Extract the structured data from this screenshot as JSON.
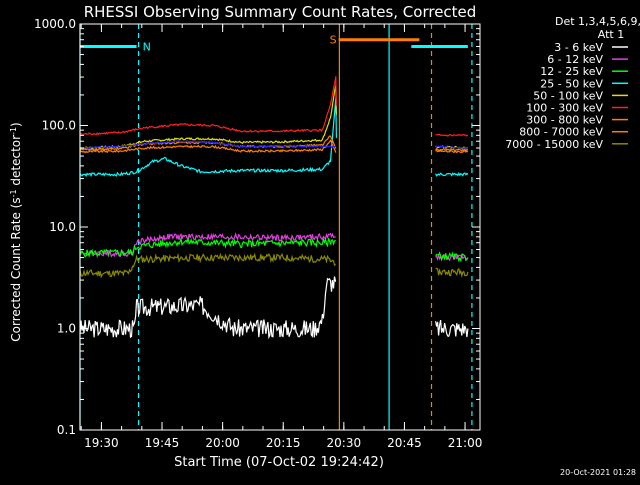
{
  "chart_data": {
    "type": "line",
    "title": "RHESSI Observing Summary Count Rates, Corrected",
    "xlabel": "Start Time (07-Oct-02 19:24:42)",
    "ylabel": "Corrected Count Rate (s",
    "ylabel_sup1": "-1",
    "ylabel_mid": " detector",
    "ylabel_sup2": "-1",
    "ylabel_end": ")",
    "y_scale": "log",
    "ylim": [
      0.1,
      1000
    ],
    "x_unit": "minutes after 19:24:42",
    "xlim": [
      0,
      99
    ],
    "x_tick_labels": [
      "19:30",
      "19:45",
      "20:00",
      "20:15",
      "20:30",
      "20:45",
      "21:00"
    ],
    "x_tick_minutes": [
      5.3,
      20.3,
      35.3,
      50.3,
      65.3,
      80.3,
      95.3
    ],
    "y_tick_labels": [
      "0.1",
      "1.0",
      "10.0",
      "100.0",
      "1000.0"
    ],
    "y_tick_values": [
      0.1,
      1,
      10,
      100,
      1000
    ],
    "legend": {
      "header": [
        "Det 1,3,4,5,6,9,",
        "Att 1"
      ],
      "placement": "top-right outside"
    },
    "series": [
      {
        "name": "3 - 6 keV",
        "color": "#ffffff",
        "values": [
          [
            0,
            1.0
          ],
          [
            13.5,
            1.0
          ],
          [
            14,
            1.6
          ],
          [
            30,
            1.7
          ],
          [
            38,
            1.0
          ],
          [
            58,
            1.0
          ],
          [
            60,
            1.2
          ],
          [
            61,
            2.8
          ],
          [
            63.5,
            2.8
          ],
          [
            88,
            1.0
          ],
          [
            96,
            1.0
          ]
        ]
      },
      {
        "name": "6 - 12 keV",
        "color": "#e040e0",
        "values": [
          [
            0,
            5.5
          ],
          [
            13,
            5.5
          ],
          [
            14,
            7.2
          ],
          [
            22,
            8.0
          ],
          [
            35,
            8.0
          ],
          [
            50,
            7.8
          ],
          [
            61,
            8.0
          ],
          [
            63.5,
            8.5
          ],
          [
            88,
            5.0
          ],
          [
            96,
            5.0
          ]
        ]
      },
      {
        "name": "12 - 25 keV",
        "color": "#00ff00",
        "values": [
          [
            0,
            5.5
          ],
          [
            13,
            5.6
          ],
          [
            14,
            6.4
          ],
          [
            25,
            7.2
          ],
          [
            40,
            6.8
          ],
          [
            55,
            7.0
          ],
          [
            61,
            7.0
          ],
          [
            63.5,
            7.5
          ],
          [
            88,
            5.2
          ],
          [
            96,
            5.0
          ]
        ]
      },
      {
        "name": "25 - 50 keV",
        "color": "#00ffff",
        "values": [
          [
            0,
            33
          ],
          [
            10,
            33
          ],
          [
            14,
            35
          ],
          [
            18,
            44
          ],
          [
            21,
            47
          ],
          [
            25,
            40
          ],
          [
            30,
            35
          ],
          [
            40,
            36
          ],
          [
            50,
            36
          ],
          [
            60,
            37
          ],
          [
            62,
            45
          ],
          [
            63.3,
            180
          ],
          [
            63.6,
            33
          ],
          [
            88,
            33
          ],
          [
            96,
            33
          ]
        ]
      },
      {
        "name": "50 - 100 keV",
        "color": "#e0e000",
        "values": [
          [
            0,
            60
          ],
          [
            10,
            62
          ],
          [
            16,
            70
          ],
          [
            25,
            74
          ],
          [
            33,
            74
          ],
          [
            40,
            68
          ],
          [
            50,
            69
          ],
          [
            60,
            72
          ],
          [
            62,
            120
          ],
          [
            63.3,
            250
          ],
          [
            63.6,
            62
          ],
          [
            88,
            62
          ],
          [
            96,
            60
          ]
        ]
      },
      {
        "name": "100 - 300 keV",
        "color": "#ff2020",
        "values": [
          [
            0,
            82
          ],
          [
            10,
            85
          ],
          [
            16,
            95
          ],
          [
            25,
            102
          ],
          [
            33,
            100
          ],
          [
            40,
            88
          ],
          [
            50,
            88
          ],
          [
            60,
            90
          ],
          [
            62,
            160
          ],
          [
            63.3,
            300
          ],
          [
            63.6,
            80
          ],
          [
            88,
            80
          ],
          [
            96,
            80
          ]
        ]
      },
      {
        "name": "300 - 800 keV",
        "color": "#ff8000",
        "values": [
          [
            0,
            55
          ],
          [
            10,
            56
          ],
          [
            16,
            60
          ],
          [
            25,
            62
          ],
          [
            33,
            62
          ],
          [
            40,
            56
          ],
          [
            50,
            56
          ],
          [
            60,
            58
          ],
          [
            62,
            70
          ],
          [
            63.6,
            52
          ],
          [
            88,
            56
          ],
          [
            96,
            55
          ]
        ]
      },
      {
        "name": "800 - 7000 keV",
        "color": "#ff8000",
        "values": [
          [
            0,
            58
          ],
          [
            10,
            59
          ],
          [
            16,
            66
          ],
          [
            25,
            68
          ],
          [
            33,
            68
          ],
          [
            40,
            62
          ],
          [
            50,
            62
          ],
          [
            60,
            64
          ],
          [
            62,
            80
          ],
          [
            63.6,
            55
          ],
          [
            88,
            58
          ],
          [
            96,
            57
          ]
        ]
      },
      {
        "name": "7000 - 15000 keV",
        "color": "#8a8a00",
        "values": [
          [
            0,
            3.5
          ],
          [
            12,
            3.5
          ],
          [
            14,
            4.8
          ],
          [
            30,
            5.0
          ],
          [
            50,
            5.0
          ],
          [
            61,
            4.8
          ],
          [
            63.5,
            4.5
          ],
          [
            88,
            3.6
          ],
          [
            96,
            3.6
          ]
        ]
      }
    ],
    "blue_trace": {
      "color": "#2020ff",
      "values": [
        [
          0,
          60
        ],
        [
          10,
          62
        ],
        [
          16,
          66
        ],
        [
          25,
          70
        ],
        [
          33,
          68
        ],
        [
          40,
          62
        ],
        [
          50,
          63
        ],
        [
          60,
          62
        ],
        [
          63.5,
          62
        ],
        [
          88,
          62
        ],
        [
          96,
          60
        ]
      ]
    },
    "flags": [
      {
        "label": "N",
        "color": "#00ffff",
        "segments": [
          [
            0,
            14
          ],
          [
            82,
            96
          ]
        ],
        "level": 600
      },
      {
        "label": "S",
        "color": "#ff8000",
        "segments": [
          [
            64,
            84
          ]
        ],
        "level": 700
      }
    ],
    "vlines": [
      {
        "x": 0,
        "color": "#00ffff",
        "style": "solid"
      },
      {
        "x": 14.5,
        "color": "#00ffff",
        "style": "dashed"
      },
      {
        "x": 64.2,
        "color": "#ff8000",
        "style": "solid"
      },
      {
        "x": 76.5,
        "color": "#00ffff",
        "style": "solid"
      },
      {
        "x": 87,
        "color": "#ff8000",
        "style": "dashed"
      },
      {
        "x": 97,
        "color": "#00ffff",
        "style": "dashed"
      }
    ],
    "timestamp": "20-Oct-2021 01:28"
  }
}
